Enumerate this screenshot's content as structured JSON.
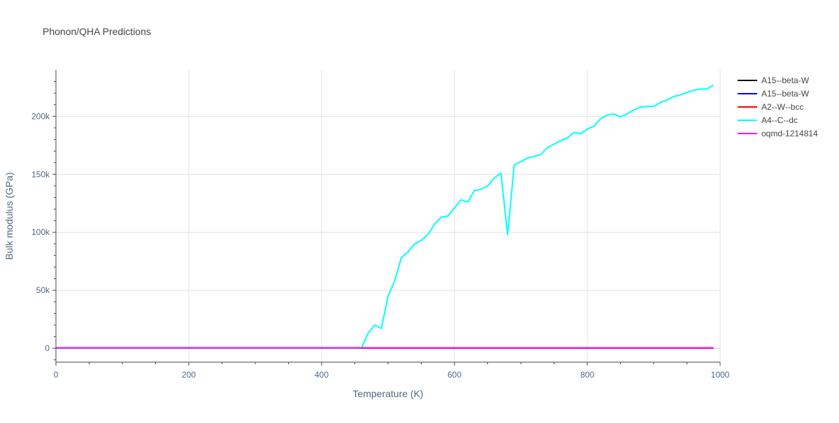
{
  "chart_data": {
    "type": "line",
    "title": "Phonon/QHA Predictions",
    "xlabel": "Temperature (K)",
    "ylabel": "Bulk modulus (GPa)",
    "xlim": [
      0,
      1000
    ],
    "ylim": [
      -12000,
      240000
    ],
    "xticks": [
      0,
      200,
      400,
      600,
      800,
      1000
    ],
    "xtick_labels": [
      "0",
      "200",
      "400",
      "600",
      "800",
      "1000"
    ],
    "yticks": [
      0,
      50000,
      100000,
      150000,
      200000
    ],
    "ytick_labels": [
      "0",
      "50k",
      "100k",
      "150k",
      "200k"
    ],
    "grid": true,
    "legend_position": "right",
    "series": [
      {
        "name": "A15--beta-W",
        "color": "#000000",
        "x": [
          0,
          990
        ],
        "y": [
          300,
          300
        ]
      },
      {
        "name": "A15--beta-W",
        "color": "#0000ff",
        "x": [
          0,
          990
        ],
        "y": [
          300,
          300
        ]
      },
      {
        "name": "A2--W--bcc",
        "color": "#ff0000",
        "x": [
          0,
          990
        ],
        "y": [
          300,
          300
        ]
      },
      {
        "name": "A4--C--dc",
        "color": "#00ffff",
        "x": [
          0,
          450,
          460,
          470,
          480,
          490,
          500,
          510,
          520,
          530,
          540,
          550,
          560,
          570,
          580,
          590,
          600,
          610,
          620,
          630,
          640,
          650,
          660,
          670,
          680,
          690,
          700,
          710,
          720,
          730,
          740,
          750,
          760,
          770,
          780,
          790,
          800,
          810,
          820,
          830,
          840,
          850,
          860,
          870,
          880,
          890,
          900,
          910,
          920,
          930,
          940,
          950,
          960,
          970,
          980,
          990
        ],
        "y": [
          0,
          0,
          0,
          13000,
          20000,
          17000,
          45000,
          58000,
          78000,
          83000,
          90000,
          93000,
          98000,
          107000,
          113000,
          114000,
          121000,
          128000,
          126000,
          136000,
          137000,
          140000,
          147000,
          151000,
          98000,
          158000,
          161000,
          164000,
          165500,
          167000,
          173000,
          176000,
          179000,
          181500,
          186000,
          185000,
          189000,
          191500,
          198000,
          201000,
          202000,
          199500,
          202000,
          205500,
          208000,
          208500,
          208500,
          212000,
          214000,
          217000,
          218500,
          220500,
          222500,
          223500,
          223500,
          227000
        ]
      },
      {
        "name": "oqmd-1214814",
        "color": "#ff00ff",
        "x": [
          0,
          990
        ],
        "y": [
          300,
          300
        ]
      }
    ]
  }
}
